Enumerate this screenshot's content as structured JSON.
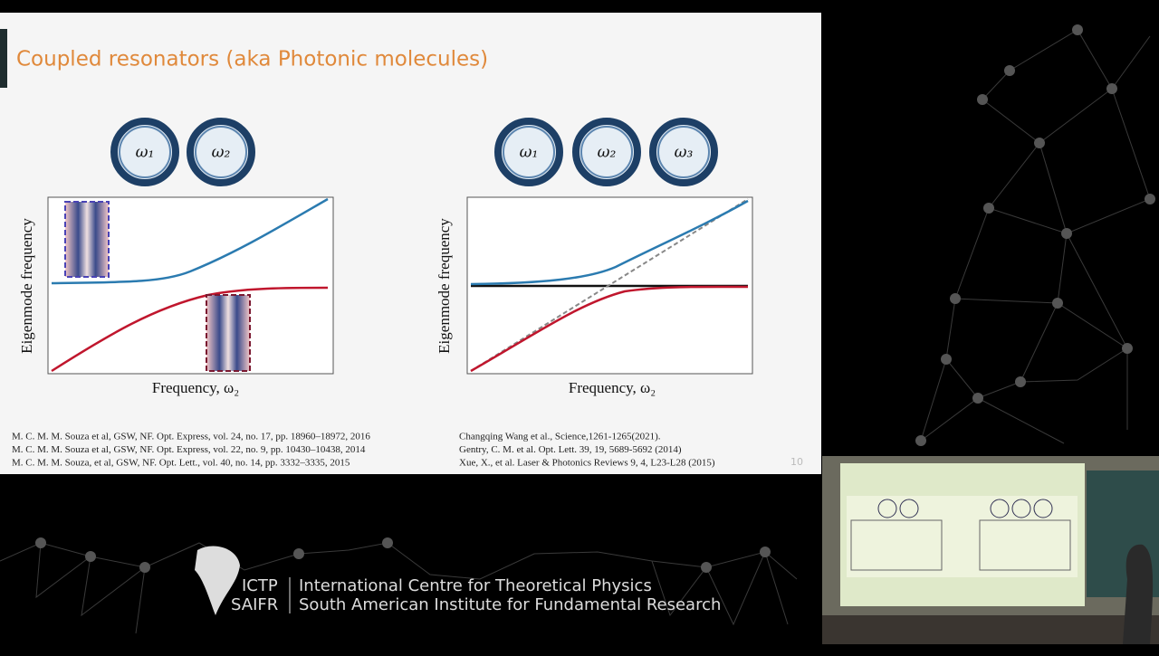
{
  "slide": {
    "title": "Coupled resonators (aka Photonic molecules)",
    "page_number": "10",
    "left_panel": {
      "rings": [
        "ω₁",
        "ω₂"
      ],
      "y_label": "Eigenmode frequency",
      "x_label": "Frequency, ω₂",
      "references": [
        "M. C. M. M. Souza et al, GSW, NF. Opt. Express, vol. 24, no. 17, pp. 18960–18972, 2016",
        "M. C. M. M. Souza et al, GSW, NF. Opt. Express, vol. 22, no. 9, pp. 10430–10438, 2014",
        "M. C. M. M. Souza, et al, GSW, NF. Opt. Lett., vol. 40, no. 14, pp. 3332–3335, 2015"
      ]
    },
    "right_panel": {
      "rings": [
        "ω₁",
        "ω₂",
        "ω₃"
      ],
      "y_label": "Eigenmode frequency",
      "x_label": "Frequency, ω₂",
      "references": [
        "Changqing Wang et al., Science,1261-1265(2021).",
        "Gentry, C. M. et al.  Opt. Lett. 39, 19, 5689-5692 (2014)",
        "Xue, X., et al. Laser & Photonics Reviews 9, 4, L23-L28 (2015)"
      ]
    }
  },
  "footer": {
    "logo_top": "ICTP",
    "logo_bottom": "SAIFR",
    "line1": "International Centre for Theoretical Physics",
    "line2": "South American Institute for Fundamental Research"
  }
}
